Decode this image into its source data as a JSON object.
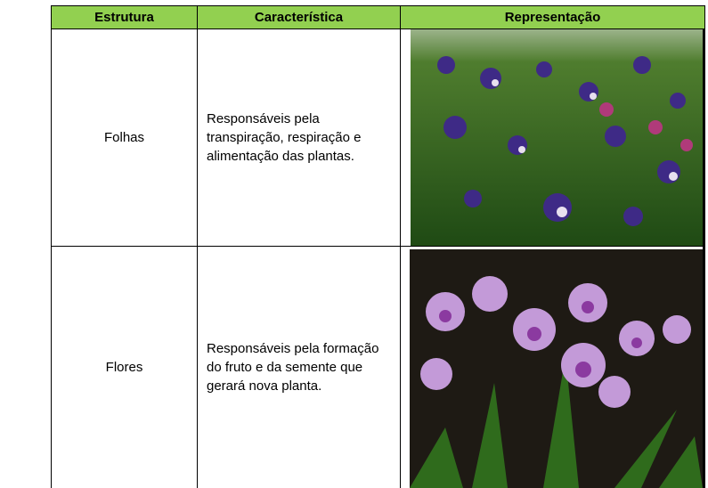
{
  "table": {
    "header": [
      "Estrutura",
      "Característica",
      "Representação"
    ],
    "rows": [
      [
        "Folhas",
        "Responsáveis pela transpiração, respiração e alimentação das plantas."
      ],
      [
        "Flores",
        "Responsáveis pela formação do fruto e da semente que gerará nova planta."
      ]
    ]
  }
}
